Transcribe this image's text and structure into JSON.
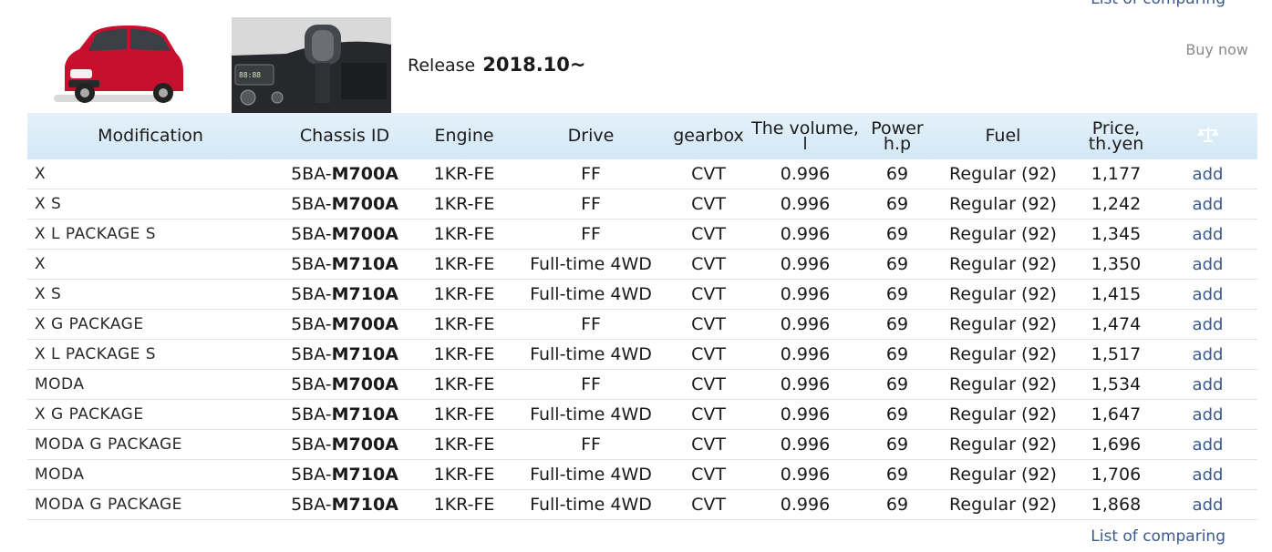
{
  "header": {
    "top_link": "List of comparing",
    "release_label": "Release",
    "release_value": "2018.10~",
    "buy_now": "Buy now",
    "bottom_link": "List of comparing"
  },
  "table": {
    "columns": [
      "Modification",
      "Chassis ID",
      "Engine",
      "Drive",
      "gearbox",
      "The volume, l",
      "Power h.p",
      "Fuel",
      "Price, th.yen",
      ""
    ],
    "header_lines": {
      "volume_line1": "The volume,",
      "volume_line2": "l",
      "power_line1": "Power",
      "power_line2": "h.p",
      "price_line1": "Price,",
      "price_line2": "th.yen"
    },
    "compare_icon": "scales-icon",
    "rows": [
      {
        "mod": "X",
        "chassis_prefix": "5BA-",
        "chassis_code": "M700A",
        "engine": "1KR-FE",
        "drive": "FF",
        "gearbox": "CVT",
        "volume": "0.996",
        "power": "69",
        "fuel": "Regular (92)",
        "price": "1,177",
        "action": "add"
      },
      {
        "mod": "X S",
        "chassis_prefix": "5BA-",
        "chassis_code": "M700A",
        "engine": "1KR-FE",
        "drive": "FF",
        "gearbox": "CVT",
        "volume": "0.996",
        "power": "69",
        "fuel": "Regular (92)",
        "price": "1,242",
        "action": "add"
      },
      {
        "mod": "X L PACKAGE S",
        "chassis_prefix": "5BA-",
        "chassis_code": "M700A",
        "engine": "1KR-FE",
        "drive": "FF",
        "gearbox": "CVT",
        "volume": "0.996",
        "power": "69",
        "fuel": "Regular (92)",
        "price": "1,345",
        "action": "add"
      },
      {
        "mod": "X",
        "chassis_prefix": "5BA-",
        "chassis_code": "M710A",
        "engine": "1KR-FE",
        "drive": "Full-time 4WD",
        "gearbox": "CVT",
        "volume": "0.996",
        "power": "69",
        "fuel": "Regular (92)",
        "price": "1,350",
        "action": "add"
      },
      {
        "mod": "X S",
        "chassis_prefix": "5BA-",
        "chassis_code": "M710A",
        "engine": "1KR-FE",
        "drive": "Full-time 4WD",
        "gearbox": "CVT",
        "volume": "0.996",
        "power": "69",
        "fuel": "Regular (92)",
        "price": "1,415",
        "action": "add"
      },
      {
        "mod": "X G PACKAGE",
        "chassis_prefix": "5BA-",
        "chassis_code": "M700A",
        "engine": "1KR-FE",
        "drive": "FF",
        "gearbox": "CVT",
        "volume": "0.996",
        "power": "69",
        "fuel": "Regular (92)",
        "price": "1,474",
        "action": "add"
      },
      {
        "mod": "X L PACKAGE S",
        "chassis_prefix": "5BA-",
        "chassis_code": "M710A",
        "engine": "1KR-FE",
        "drive": "Full-time 4WD",
        "gearbox": "CVT",
        "volume": "0.996",
        "power": "69",
        "fuel": "Regular (92)",
        "price": "1,517",
        "action": "add"
      },
      {
        "mod": "MODA",
        "chassis_prefix": "5BA-",
        "chassis_code": "M700A",
        "engine": "1KR-FE",
        "drive": "FF",
        "gearbox": "CVT",
        "volume": "0.996",
        "power": "69",
        "fuel": "Regular (92)",
        "price": "1,534",
        "action": "add"
      },
      {
        "mod": "X G PACKAGE",
        "chassis_prefix": "5BA-",
        "chassis_code": "M710A",
        "engine": "1KR-FE",
        "drive": "Full-time 4WD",
        "gearbox": "CVT",
        "volume": "0.996",
        "power": "69",
        "fuel": "Regular (92)",
        "price": "1,647",
        "action": "add"
      },
      {
        "mod": "MODA G PACKAGE",
        "chassis_prefix": "5BA-",
        "chassis_code": "M700A",
        "engine": "1KR-FE",
        "drive": "FF",
        "gearbox": "CVT",
        "volume": "0.996",
        "power": "69",
        "fuel": "Regular (92)",
        "price": "1,696",
        "action": "add"
      },
      {
        "mod": "MODA",
        "chassis_prefix": "5BA-",
        "chassis_code": "M710A",
        "engine": "1KR-FE",
        "drive": "Full-time 4WD",
        "gearbox": "CVT",
        "volume": "0.996",
        "power": "69",
        "fuel": "Regular (92)",
        "price": "1,706",
        "action": "add"
      },
      {
        "mod": "MODA G PACKAGE",
        "chassis_prefix": "5BA-",
        "chassis_code": "M710A",
        "engine": "1KR-FE",
        "drive": "Full-time 4WD",
        "gearbox": "CVT",
        "volume": "0.996",
        "power": "69",
        "fuel": "Regular (92)",
        "price": "1,868",
        "action": "add"
      }
    ]
  },
  "colors": {
    "link": "#3a5a8c",
    "header_bg": "#dcedf8",
    "car_body": "#c8102e"
  }
}
